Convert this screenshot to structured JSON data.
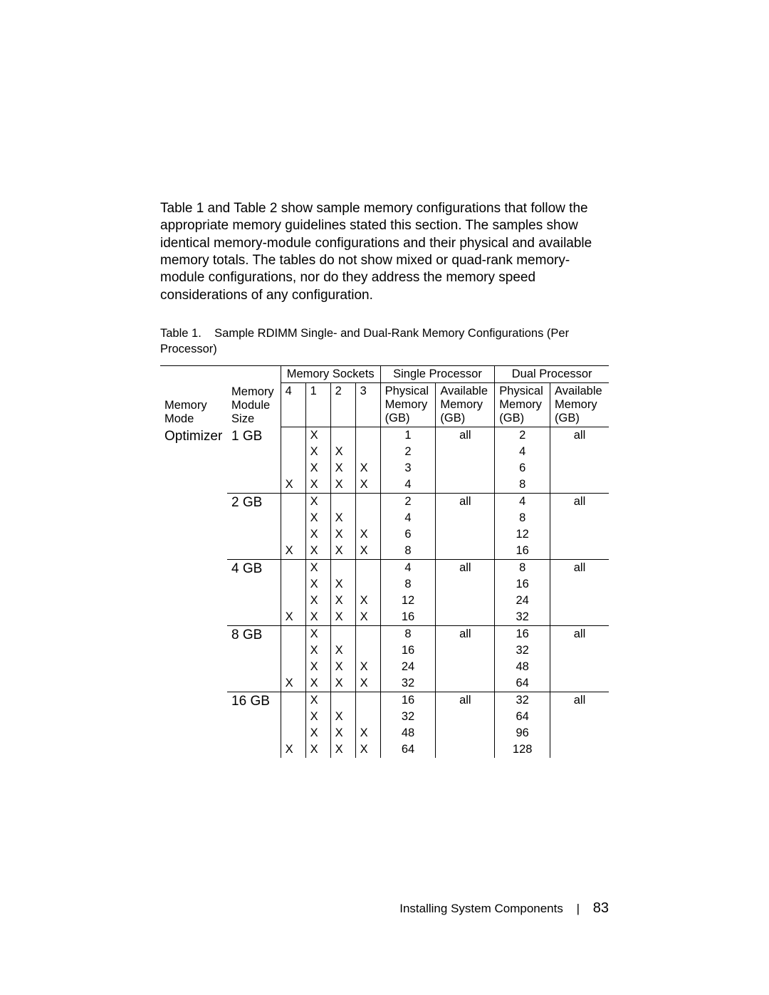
{
  "intro": "Table 1 and Table 2 show sample memory configurations that follow the appropriate memory guidelines stated this section. The samples show identical memory-module configurations and their physical and available memory totals. The tables do not show mixed or quad-rank memory-module configurations, nor do they address the memory speed considerations of any configuration.",
  "table_caption_prefix": "Table 1.",
  "table_caption_rest": "Sample RDIMM Single- and Dual-Rank Memory Configurations (Per Processor)",
  "headers": {
    "memory_mode": "Memory Mode",
    "module_size": "Memory Module Size",
    "sockets": "Memory Sockets",
    "s4": "4",
    "s1": "1",
    "s2": "2",
    "s3": "3",
    "single_proc": "Single Processor",
    "dual_proc": "Dual Processor",
    "phys_mem": "Physical Memory (GB)",
    "avail_mem": "Available Memory (GB)"
  },
  "mode": "Optimizer",
  "groups": [
    {
      "size": "1 GB",
      "rows": [
        {
          "s4": "",
          "s1": "X",
          "s2": "",
          "s3": "",
          "sp": "1",
          "sa": "all",
          "dp": "2",
          "da": "all"
        },
        {
          "s4": "",
          "s1": "X",
          "s2": "X",
          "s3": "",
          "sp": "2",
          "sa": "",
          "dp": "4",
          "da": ""
        },
        {
          "s4": "",
          "s1": "X",
          "s2": "X",
          "s3": "X",
          "sp": "3",
          "sa": "",
          "dp": "6",
          "da": ""
        },
        {
          "s4": "X",
          "s1": "X",
          "s2": "X",
          "s3": "X",
          "sp": "4",
          "sa": "",
          "dp": "8",
          "da": ""
        }
      ]
    },
    {
      "size": "2 GB",
      "rows": [
        {
          "s4": "",
          "s1": "X",
          "s2": "",
          "s3": "",
          "sp": "2",
          "sa": "all",
          "dp": "4",
          "da": "all"
        },
        {
          "s4": "",
          "s1": "X",
          "s2": "X",
          "s3": "",
          "sp": "4",
          "sa": "",
          "dp": "8",
          "da": ""
        },
        {
          "s4": "",
          "s1": "X",
          "s2": "X",
          "s3": "X",
          "sp": "6",
          "sa": "",
          "dp": "12",
          "da": ""
        },
        {
          "s4": "X",
          "s1": "X",
          "s2": "X",
          "s3": "X",
          "sp": "8",
          "sa": "",
          "dp": "16",
          "da": ""
        }
      ]
    },
    {
      "size": "4 GB",
      "rows": [
        {
          "s4": "",
          "s1": "X",
          "s2": "",
          "s3": "",
          "sp": "4",
          "sa": "all",
          "dp": "8",
          "da": "all"
        },
        {
          "s4": "",
          "s1": "X",
          "s2": "X",
          "s3": "",
          "sp": "8",
          "sa": "",
          "dp": "16",
          "da": ""
        },
        {
          "s4": "",
          "s1": "X",
          "s2": "X",
          "s3": "X",
          "sp": "12",
          "sa": "",
          "dp": "24",
          "da": ""
        },
        {
          "s4": "X",
          "s1": "X",
          "s2": "X",
          "s3": "X",
          "sp": "16",
          "sa": "",
          "dp": "32",
          "da": ""
        }
      ]
    },
    {
      "size": "8 GB",
      "rows": [
        {
          "s4": "",
          "s1": "X",
          "s2": "",
          "s3": "",
          "sp": "8",
          "sa": "all",
          "dp": "16",
          "da": "all"
        },
        {
          "s4": "",
          "s1": "X",
          "s2": "X",
          "s3": "",
          "sp": "16",
          "sa": "",
          "dp": "32",
          "da": ""
        },
        {
          "s4": "",
          "s1": "X",
          "s2": "X",
          "s3": "X",
          "sp": "24",
          "sa": "",
          "dp": "48",
          "da": ""
        },
        {
          "s4": "X",
          "s1": "X",
          "s2": "X",
          "s3": "X",
          "sp": "32",
          "sa": "",
          "dp": "64",
          "da": ""
        }
      ]
    },
    {
      "size": "16 GB",
      "rows": [
        {
          "s4": "",
          "s1": "X",
          "s2": "",
          "s3": "",
          "sp": "16",
          "sa": "all",
          "dp": "32",
          "da": "all"
        },
        {
          "s4": "",
          "s1": "X",
          "s2": "X",
          "s3": "",
          "sp": "32",
          "sa": "",
          "dp": "64",
          "da": ""
        },
        {
          "s4": "",
          "s1": "X",
          "s2": "X",
          "s3": "X",
          "sp": "48",
          "sa": "",
          "dp": "96",
          "da": ""
        },
        {
          "s4": "X",
          "s1": "X",
          "s2": "X",
          "s3": "X",
          "sp": "64",
          "sa": "",
          "dp": "128",
          "da": ""
        }
      ]
    }
  ],
  "footer_section": "Installing System Components",
  "footer_page": "83",
  "colors": {
    "text": "#000000",
    "background": "#ffffff",
    "rule": "#000000"
  },
  "fontsizes": {
    "intro_pt": 14,
    "caption_pt": 12,
    "table_pt": 12,
    "footer_section_pt": 12,
    "footer_page_pt": 15
  }
}
